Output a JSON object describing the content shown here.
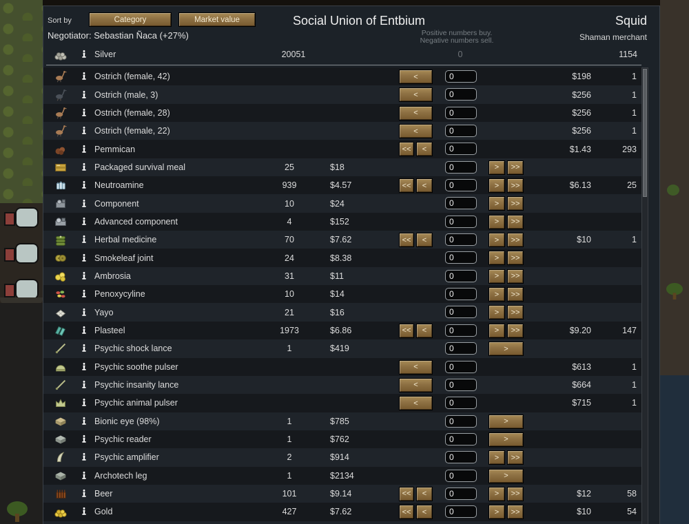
{
  "window": {
    "sort_by_label": "Sort by",
    "sort_buttons": [
      "Category",
      "Market value"
    ],
    "title": "Social Union of Entbium",
    "hint_line1": "Positive numbers buy.",
    "hint_line2": "Negative numbers sell.",
    "negotiator_label": "Negotiator: Sebastian Ñaca (+27%)",
    "trader_name": "Squid",
    "trader_kind": "Shaman merchant"
  },
  "button_glyphs": {
    "sell_all": "<<",
    "sell_one": "<",
    "buy_one": ">",
    "buy_all": ">>"
  },
  "colors": {
    "dialog_bg": "#1c2228",
    "row_dark": "#16191d",
    "row_light": "#1f242a",
    "button_tan": "#8d7043",
    "text": "#dcdcdc",
    "hint_text": "#787f84"
  },
  "currency_row": {
    "name": "Silver",
    "icon": "silver",
    "colony_qty": "20051",
    "offer": "0",
    "trader_qty": "1154"
  },
  "rows": [
    {
      "name": "Ostrich (female, 42)",
      "icon": "ostrich_f",
      "colony_qty": "",
      "colony_price": "",
      "left": "wide",
      "input": "0",
      "right": "none",
      "trader_price": "$198",
      "trader_qty": "1"
    },
    {
      "name": "Ostrich (male, 3)",
      "icon": "ostrich_m",
      "colony_qty": "",
      "colony_price": "",
      "left": "wide",
      "input": "0",
      "right": "none",
      "trader_price": "$256",
      "trader_qty": "1"
    },
    {
      "name": "Ostrich (female, 28)",
      "icon": "ostrich_f",
      "colony_qty": "",
      "colony_price": "",
      "left": "wide",
      "input": "0",
      "right": "none",
      "trader_price": "$256",
      "trader_qty": "1"
    },
    {
      "name": "Ostrich (female, 22)",
      "icon": "ostrich_f",
      "colony_qty": "",
      "colony_price": "",
      "left": "wide",
      "input": "0",
      "right": "none",
      "trader_price": "$256",
      "trader_qty": "1"
    },
    {
      "name": "Pemmican",
      "icon": "pemmican",
      "colony_qty": "",
      "colony_price": "",
      "left": "double",
      "input": "0",
      "right": "none",
      "trader_price": "$1.43",
      "trader_qty": "293"
    },
    {
      "name": "Packaged survival meal",
      "icon": "meal",
      "colony_qty": "25",
      "colony_price": "$18",
      "left": "none",
      "input": "0",
      "right": "double",
      "trader_price": "",
      "trader_qty": ""
    },
    {
      "name": "Neutroamine",
      "icon": "neutroamine",
      "colony_qty": "939",
      "colony_price": "$4.57",
      "left": "double",
      "input": "0",
      "right": "double",
      "trader_price": "$6.13",
      "trader_qty": "25"
    },
    {
      "name": "Component",
      "icon": "component",
      "colony_qty": "10",
      "colony_price": "$24",
      "left": "none",
      "input": "0",
      "right": "double",
      "trader_price": "",
      "trader_qty": ""
    },
    {
      "name": "Advanced component",
      "icon": "adv_component",
      "colony_qty": "4",
      "colony_price": "$152",
      "left": "none",
      "input": "0",
      "right": "double",
      "trader_price": "",
      "trader_qty": ""
    },
    {
      "name": "Herbal medicine",
      "icon": "herbal",
      "colony_qty": "70",
      "colony_price": "$7.62",
      "left": "double",
      "input": "0",
      "right": "double",
      "trader_price": "$10",
      "trader_qty": "1"
    },
    {
      "name": "Smokeleaf joint",
      "icon": "joint",
      "colony_qty": "24",
      "colony_price": "$8.38",
      "left": "none",
      "input": "0",
      "right": "double",
      "trader_price": "",
      "trader_qty": ""
    },
    {
      "name": "Ambrosia",
      "icon": "ambrosia",
      "colony_qty": "31",
      "colony_price": "$11",
      "left": "none",
      "input": "0",
      "right": "double",
      "trader_price": "",
      "trader_qty": ""
    },
    {
      "name": "Penoxycyline",
      "icon": "penoxycyline",
      "colony_qty": "10",
      "colony_price": "$14",
      "left": "none",
      "input": "0",
      "right": "double",
      "trader_price": "",
      "trader_qty": ""
    },
    {
      "name": "Yayo",
      "icon": "yayo",
      "colony_qty": "21",
      "colony_price": "$16",
      "left": "none",
      "input": "0",
      "right": "double",
      "trader_price": "",
      "trader_qty": ""
    },
    {
      "name": "Plasteel",
      "icon": "plasteel",
      "colony_qty": "1973",
      "colony_price": "$6.86",
      "left": "double",
      "input": "0",
      "right": "double",
      "trader_price": "$9.20",
      "trader_qty": "147"
    },
    {
      "name": "Psychic shock lance",
      "icon": "lance",
      "colony_qty": "1",
      "colony_price": "$419",
      "left": "none",
      "input": "0",
      "right": "wide",
      "trader_price": "",
      "trader_qty": ""
    },
    {
      "name": "Psychic soothe pulser",
      "icon": "soothe_pulser",
      "colony_qty": "",
      "colony_price": "",
      "left": "wide",
      "input": "0",
      "right": "none",
      "trader_price": "$613",
      "trader_qty": "1"
    },
    {
      "name": "Psychic insanity lance",
      "icon": "lance",
      "colony_qty": "",
      "colony_price": "",
      "left": "wide",
      "input": "0",
      "right": "none",
      "trader_price": "$664",
      "trader_qty": "1"
    },
    {
      "name": "Psychic animal pulser",
      "icon": "animal_pulser",
      "colony_qty": "",
      "colony_price": "",
      "left": "wide",
      "input": "0",
      "right": "none",
      "trader_price": "$715",
      "trader_qty": "1"
    },
    {
      "name": "Bionic eye (98%)",
      "icon": "bionic_eye",
      "colony_qty": "1",
      "colony_price": "$785",
      "left": "none",
      "input": "0",
      "right": "wide",
      "trader_price": "",
      "trader_qty": ""
    },
    {
      "name": "Psychic reader",
      "icon": "psychic_reader",
      "colony_qty": "1",
      "colony_price": "$762",
      "left": "none",
      "input": "0",
      "right": "wide",
      "trader_price": "",
      "trader_qty": ""
    },
    {
      "name": "Psychic amplifier",
      "icon": "amplifier",
      "colony_qty": "2",
      "colony_price": "$914",
      "left": "none",
      "input": "0",
      "right": "double",
      "trader_price": "",
      "trader_qty": ""
    },
    {
      "name": "Archotech leg",
      "icon": "archotech_leg",
      "colony_qty": "1",
      "colony_price": "$2134",
      "left": "none",
      "input": "0",
      "right": "wide",
      "trader_price": "",
      "trader_qty": ""
    },
    {
      "name": "Beer",
      "icon": "beer",
      "colony_qty": "101",
      "colony_price": "$9.14",
      "left": "double",
      "input": "0",
      "right": "double",
      "trader_price": "$12",
      "trader_qty": "58"
    },
    {
      "name": "Gold",
      "icon": "gold",
      "colony_qty": "427",
      "colony_price": "$7.62",
      "left": "double",
      "input": "0",
      "right": "double",
      "trader_price": "$10",
      "trader_qty": "54"
    }
  ]
}
